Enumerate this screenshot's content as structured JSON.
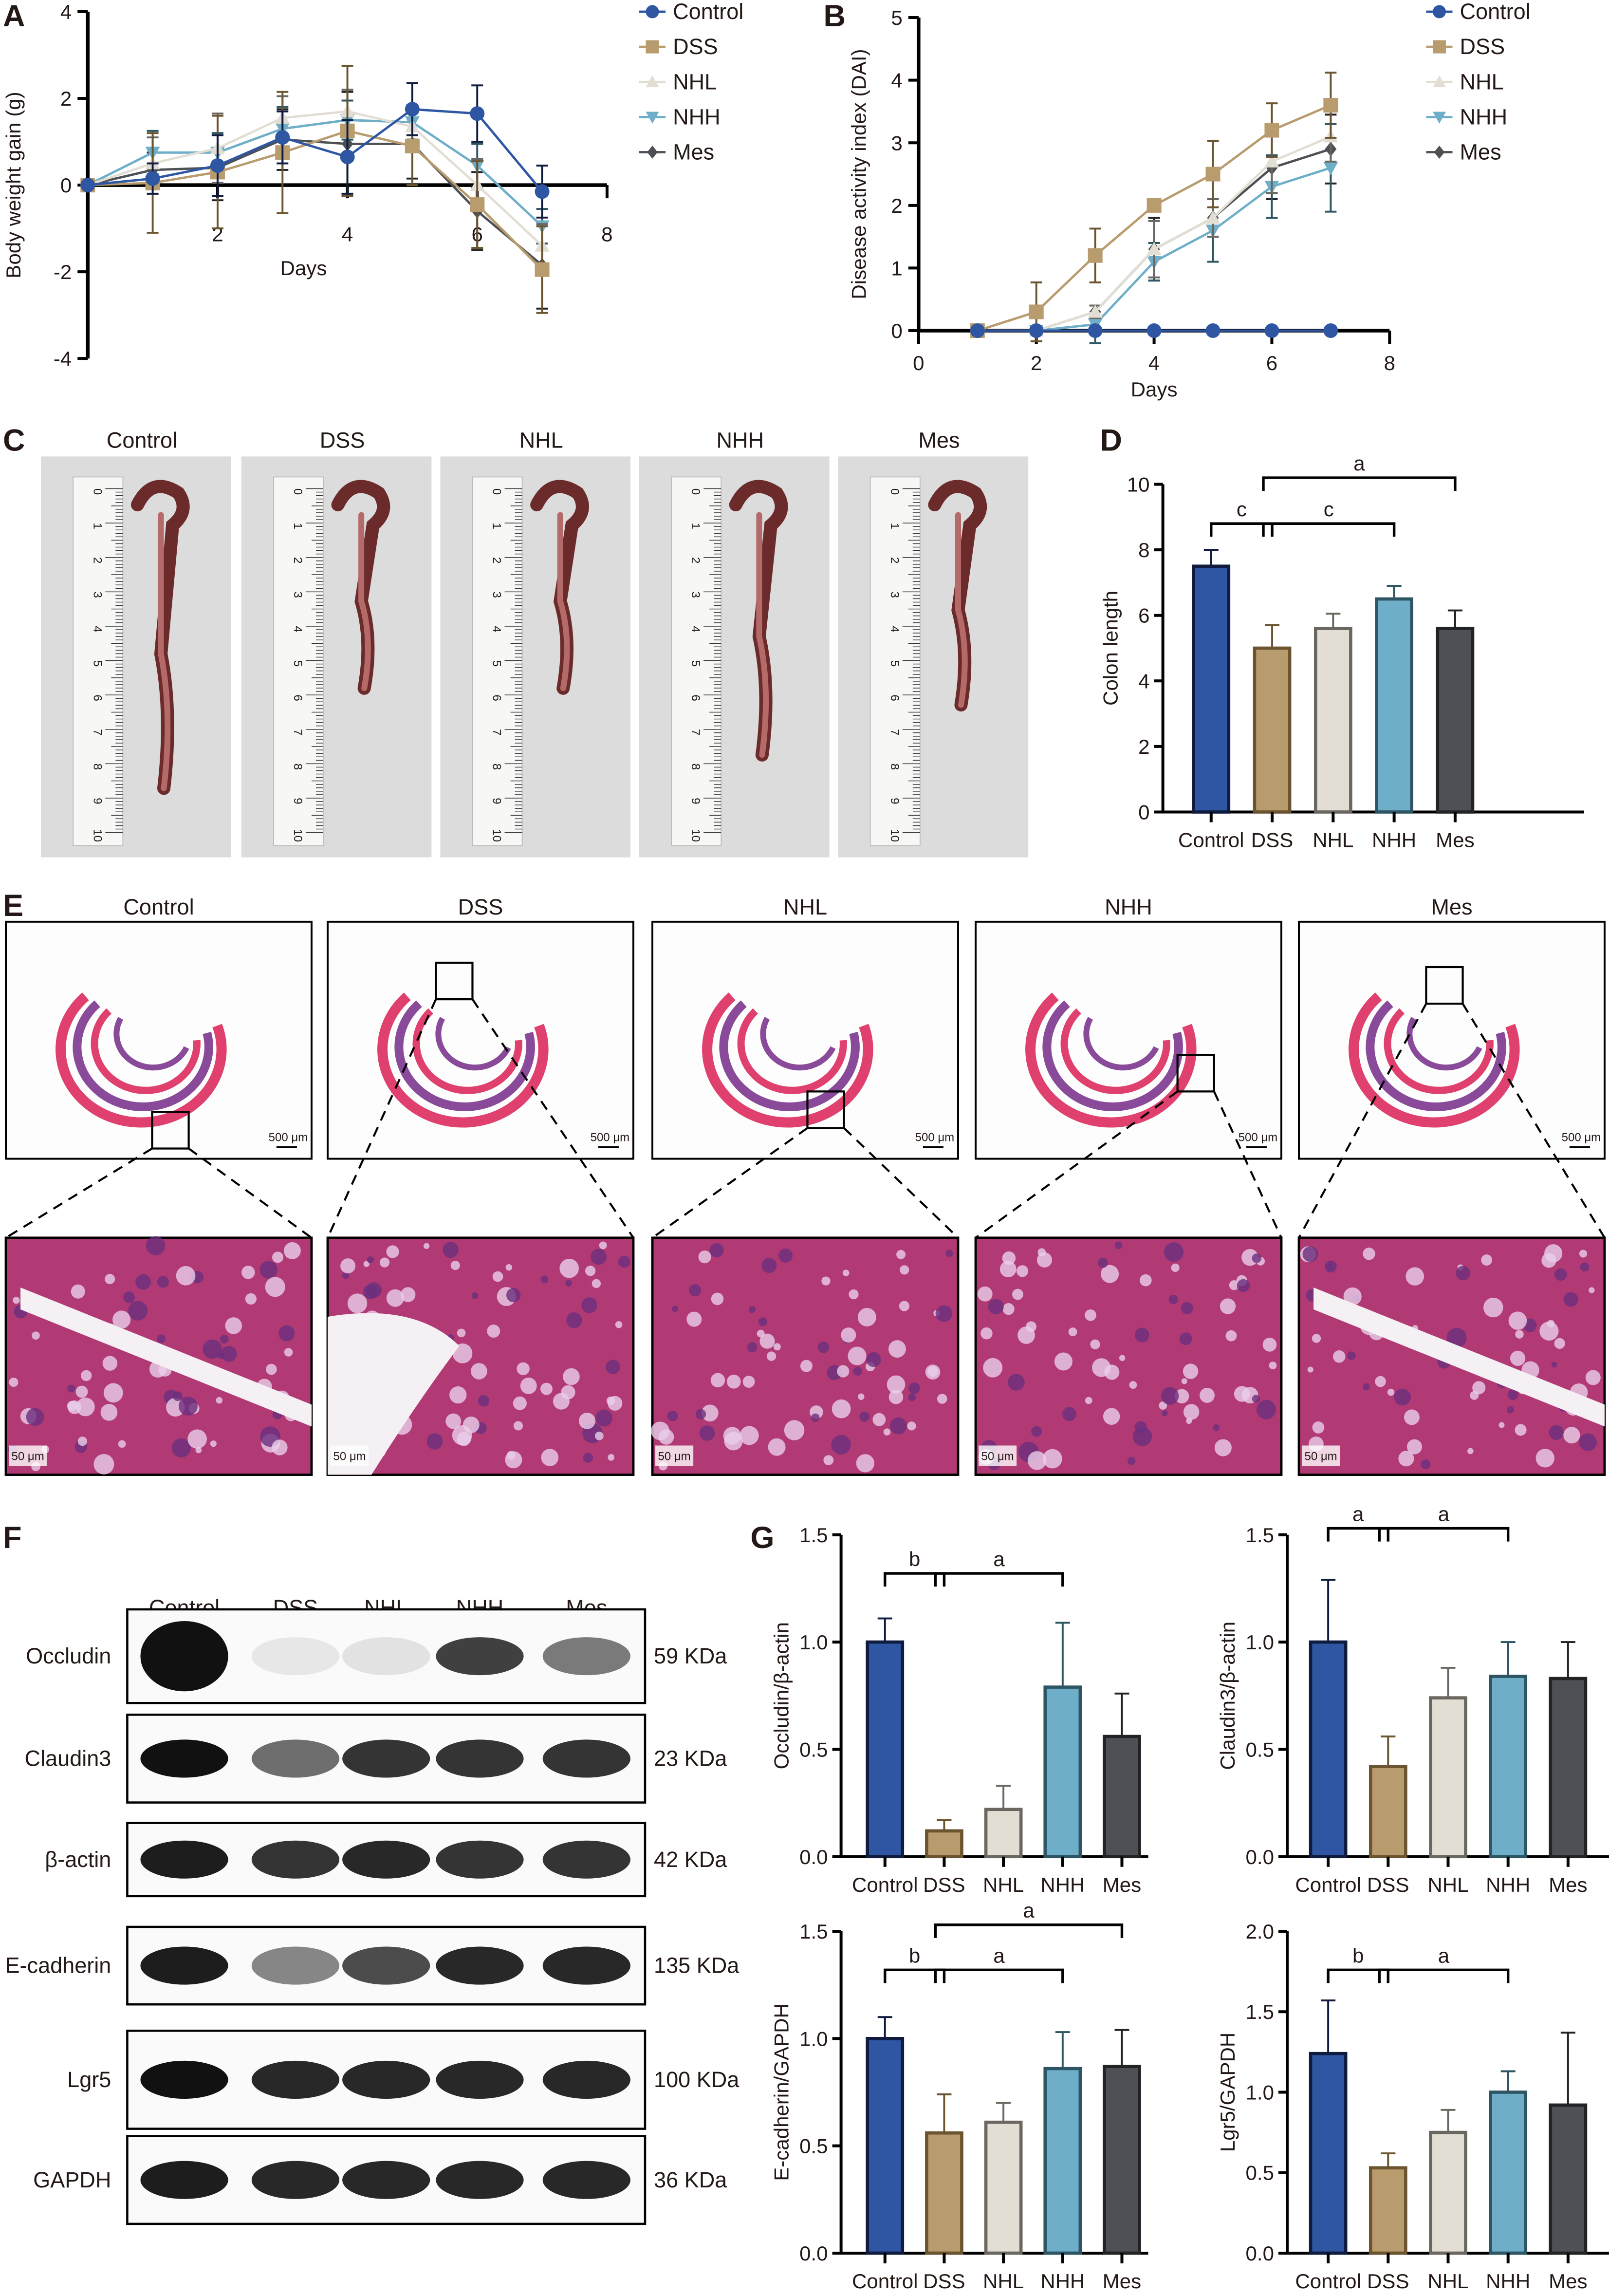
{
  "panels": {
    "A": "A",
    "B": "B",
    "C": "C",
    "D": "D",
    "E": "E",
    "F": "F",
    "G": "G"
  },
  "groups": [
    "Control",
    "DSS",
    "NHL",
    "NHH",
    "Mes"
  ],
  "colors": {
    "Control": "#2E56A3",
    "DSS": "#B89C6E",
    "NHL": "#E3DED3",
    "NHH": "#6FAEC8",
    "Mes": "#4D5055"
  },
  "edge_colors": {
    "Control": "#0F1C3F",
    "DSS": "#6B5430",
    "NHL": "#6A6760",
    "NHH": "#2D5563",
    "Mes": "#222325"
  },
  "chart_data": [
    {
      "id": "A",
      "type": "line",
      "xlabel": "Days",
      "ylabel": "Body weight gain (g)",
      "xlim": [
        0,
        8
      ],
      "ylim": [
        -4,
        4
      ],
      "xticks": [
        "2",
        "4",
        "6",
        "8"
      ],
      "yticks": [
        "4",
        "2",
        "0",
        "-2",
        "-4"
      ],
      "legend": "right",
      "x": [
        0,
        1,
        2,
        3,
        4,
        5,
        6,
        7
      ],
      "series": [
        {
          "name": "Control",
          "marker": "circle",
          "values": [
            0,
            0.15,
            0.45,
            1.1,
            0.65,
            1.75,
            1.65,
            -0.15
          ],
          "errors": [
            0,
            0.35,
            0.7,
            0.6,
            0.85,
            0.6,
            0.65,
            0.6
          ]
        },
        {
          "name": "DSS",
          "marker": "square",
          "values": [
            0,
            0.05,
            0.3,
            0.75,
            1.25,
            0.9,
            -0.45,
            -1.95
          ],
          "errors": [
            0,
            1.15,
            1.3,
            1.4,
            1.5,
            0.9,
            1.0,
            1.0
          ]
        },
        {
          "name": "NHL",
          "marker": "triangle-up",
          "values": [
            0,
            0.5,
            0.85,
            1.55,
            1.7,
            1.35,
            0,
            -1.4
          ],
          "errors": [
            0,
            0.6,
            0.8,
            0.5,
            0.5,
            0.4,
            0.6,
            0.5
          ]
        },
        {
          "name": "NHH",
          "marker": "triangle-down",
          "values": [
            0,
            0.75,
            0.75,
            1.3,
            1.5,
            1.45,
            0.45,
            -0.95
          ],
          "errors": [
            0,
            0.5,
            0.45,
            0.5,
            0.45,
            0.4,
            0.5,
            0.4
          ]
        },
        {
          "name": "Mes",
          "marker": "diamond",
          "values": [
            0,
            0.35,
            0.4,
            1.05,
            0.95,
            0.95,
            -0.6,
            -1.85
          ],
          "errors": [
            0,
            0.4,
            0.75,
            0.7,
            1.2,
            0.8,
            0.9,
            1.0
          ]
        }
      ]
    },
    {
      "id": "B",
      "type": "line",
      "xlabel": "Days",
      "ylabel": "Disease activity index (DAI)",
      "xlim": [
        0,
        8
      ],
      "ylim": [
        0,
        5
      ],
      "xticks": [
        "0",
        "2",
        "4",
        "6",
        "8"
      ],
      "yticks": [
        "5",
        "4",
        "3",
        "2",
        "1",
        "0"
      ],
      "legend": "right",
      "x": [
        1,
        2,
        3,
        4,
        5,
        6,
        7
      ],
      "series": [
        {
          "name": "Control",
          "marker": "circle",
          "values": [
            0,
            0,
            0,
            0,
            0,
            0,
            0
          ],
          "errors": [
            0,
            0,
            0,
            0,
            0,
            0,
            0
          ]
        },
        {
          "name": "DSS",
          "marker": "square",
          "values": [
            0,
            0.3,
            1.2,
            2.0,
            2.5,
            3.2,
            3.6
          ],
          "errors": [
            0,
            0.47,
            0.43,
            0,
            0.53,
            0.43,
            0.52
          ]
        },
        {
          "name": "NHL",
          "marker": "triangle-up",
          "values": [
            0,
            0,
            0.3,
            1.3,
            1.8,
            2.7,
            3.1
          ],
          "errors": [
            0,
            0,
            0.1,
            0.45,
            0.3,
            0.5,
            0.4
          ]
        },
        {
          "name": "NHH",
          "marker": "triangle-down",
          "values": [
            0,
            0,
            0.1,
            1.1,
            1.6,
            2.3,
            2.6
          ],
          "errors": [
            0,
            0,
            0.3,
            0.3,
            0.5,
            0.5,
            0.7
          ]
        },
        {
          "name": "Mes",
          "marker": "diamond",
          "values": [
            0,
            0,
            0.3,
            1.3,
            1.8,
            2.6,
            2.9
          ],
          "errors": [
            0,
            0,
            0.1,
            0.5,
            0.3,
            0.5,
            0.55
          ]
        }
      ]
    },
    {
      "id": "D",
      "type": "bar",
      "ylabel": "Colon length",
      "ylim": [
        0,
        10
      ],
      "yticks": [
        "0",
        "2",
        "4",
        "6",
        "8",
        "10"
      ],
      "ytick_values": [
        0,
        2,
        4,
        6,
        8,
        10
      ],
      "categories": [
        "Control",
        "DSS",
        "NHL",
        "NHH",
        "Mes"
      ],
      "values": [
        7.5,
        5.0,
        5.6,
        6.5,
        5.6
      ],
      "errors": [
        0.5,
        0.7,
        0.45,
        0.4,
        0.55
      ],
      "significance": [
        {
          "from": 0,
          "to": 1,
          "label": "c",
          "tier": 1
        },
        {
          "from": 1,
          "to": 3,
          "label": "c",
          "tier": 1
        },
        {
          "from": 1,
          "to": 4,
          "label": "a",
          "tier": 2
        }
      ]
    },
    {
      "id": "G1",
      "type": "bar",
      "ylabel": "Occludin/β-actin",
      "ylim": [
        0,
        1.5
      ],
      "yticks": [
        "0.0",
        "0.5",
        "1.0",
        "1.5"
      ],
      "ytick_values": [
        0,
        0.5,
        1,
        1.5
      ],
      "categories": [
        "Control",
        "DSS",
        "NHL",
        "NHH",
        "Mes"
      ],
      "values": [
        1.0,
        0.12,
        0.22,
        0.79,
        0.56
      ],
      "errors": [
        0.11,
        0.05,
        0.11,
        0.3,
        0.2
      ],
      "significance": [
        {
          "from": 0,
          "to": 1,
          "label": "b",
          "tier": 1
        },
        {
          "from": 1,
          "to": 3,
          "label": "a",
          "tier": 1
        }
      ]
    },
    {
      "id": "G2",
      "type": "bar",
      "ylabel": "Claudin3/β-actin",
      "ylim": [
        0,
        1.5
      ],
      "yticks": [
        "0.0",
        "0.5",
        "1.0",
        "1.5"
      ],
      "ytick_values": [
        0,
        0.5,
        1,
        1.5
      ],
      "categories": [
        "Control",
        "DSS",
        "NHL",
        "NHH",
        "Mes"
      ],
      "values": [
        1.0,
        0.42,
        0.74,
        0.84,
        0.83
      ],
      "errors": [
        0.29,
        0.14,
        0.14,
        0.16,
        0.17
      ],
      "significance": [
        {
          "from": 0,
          "to": 1,
          "label": "a",
          "tier": 2
        },
        {
          "from": 1,
          "to": 3,
          "label": "a",
          "tier": 2
        }
      ]
    },
    {
      "id": "G3",
      "type": "bar",
      "ylabel": "E-cadherin/GAPDH",
      "ylim": [
        0,
        1.5
      ],
      "yticks": [
        "0.0",
        "0.5",
        "1.0",
        "1.5"
      ],
      "ytick_values": [
        0,
        0.5,
        1,
        1.5
      ],
      "categories": [
        "Control",
        "DSS",
        "NHL",
        "NHH",
        "Mes"
      ],
      "values": [
        1.0,
        0.56,
        0.61,
        0.86,
        0.87
      ],
      "errors": [
        0.1,
        0.18,
        0.09,
        0.17,
        0.17
      ],
      "significance": [
        {
          "from": 0,
          "to": 1,
          "label": "b",
          "tier": 1
        },
        {
          "from": 1,
          "to": 3,
          "label": "a",
          "tier": 1
        },
        {
          "from": 1,
          "to": 4,
          "label": "a",
          "tier": 2
        }
      ]
    },
    {
      "id": "G4",
      "type": "bar",
      "ylabel": "Lgr5/GAPDH",
      "ylim": [
        0,
        2.0
      ],
      "yticks": [
        "0.0",
        "0.5",
        "1.0",
        "1.5",
        "2.0"
      ],
      "ytick_values": [
        0,
        0.5,
        1,
        1.5,
        2
      ],
      "categories": [
        "Control",
        "DSS",
        "NHL",
        "NHH",
        "Mes"
      ],
      "values": [
        1.24,
        0.53,
        0.75,
        1.0,
        0.92
      ],
      "errors": [
        0.33,
        0.09,
        0.14,
        0.13,
        0.45
      ],
      "significance": [
        {
          "from": 0,
          "to": 1,
          "label": "b",
          "tier": 1
        },
        {
          "from": 1,
          "to": 3,
          "label": "a",
          "tier": 1
        }
      ]
    }
  ],
  "colon_photos": {
    "titles": [
      "Control",
      "DSS",
      "NHL",
      "NHH",
      "Mes"
    ],
    "ruler_numbers": [
      "0",
      "1",
      "2",
      "3",
      "4",
      "5",
      "6",
      "7",
      "8",
      "9",
      "10"
    ]
  },
  "histology": {
    "titles": [
      "Control",
      "DSS",
      "NHL",
      "NHH",
      "Mes"
    ],
    "scale_top": "500 μm",
    "scale_bottom": "50 μm"
  },
  "western_blot": {
    "columns": [
      "Control",
      "DSS",
      "NHL",
      "NHH",
      "Mes"
    ],
    "rows": [
      {
        "protein": "Occludin",
        "size": "59 KDa",
        "intensity": [
          1,
          0.08,
          0.1,
          0.8,
          0.55
        ]
      },
      {
        "protein": "Claudin3",
        "size": "23 KDa",
        "intensity": [
          1,
          0.6,
          0.85,
          0.85,
          0.85
        ]
      },
      {
        "protein": "β-actin",
        "size": "42 KDa",
        "intensity": [
          0.95,
          0.85,
          0.9,
          0.85,
          0.85
        ]
      },
      {
        "protein": "E-cadherin",
        "size": "135 KDa",
        "intensity": [
          0.95,
          0.5,
          0.75,
          0.9,
          0.9
        ]
      },
      {
        "protein": "Lgr5",
        "size": "100 KDa",
        "intensity": [
          1,
          0.9,
          0.9,
          0.9,
          0.9
        ]
      },
      {
        "protein": "GAPDH",
        "size": "36 KDa",
        "intensity": [
          0.95,
          0.9,
          0.9,
          0.9,
          0.9
        ]
      }
    ]
  }
}
